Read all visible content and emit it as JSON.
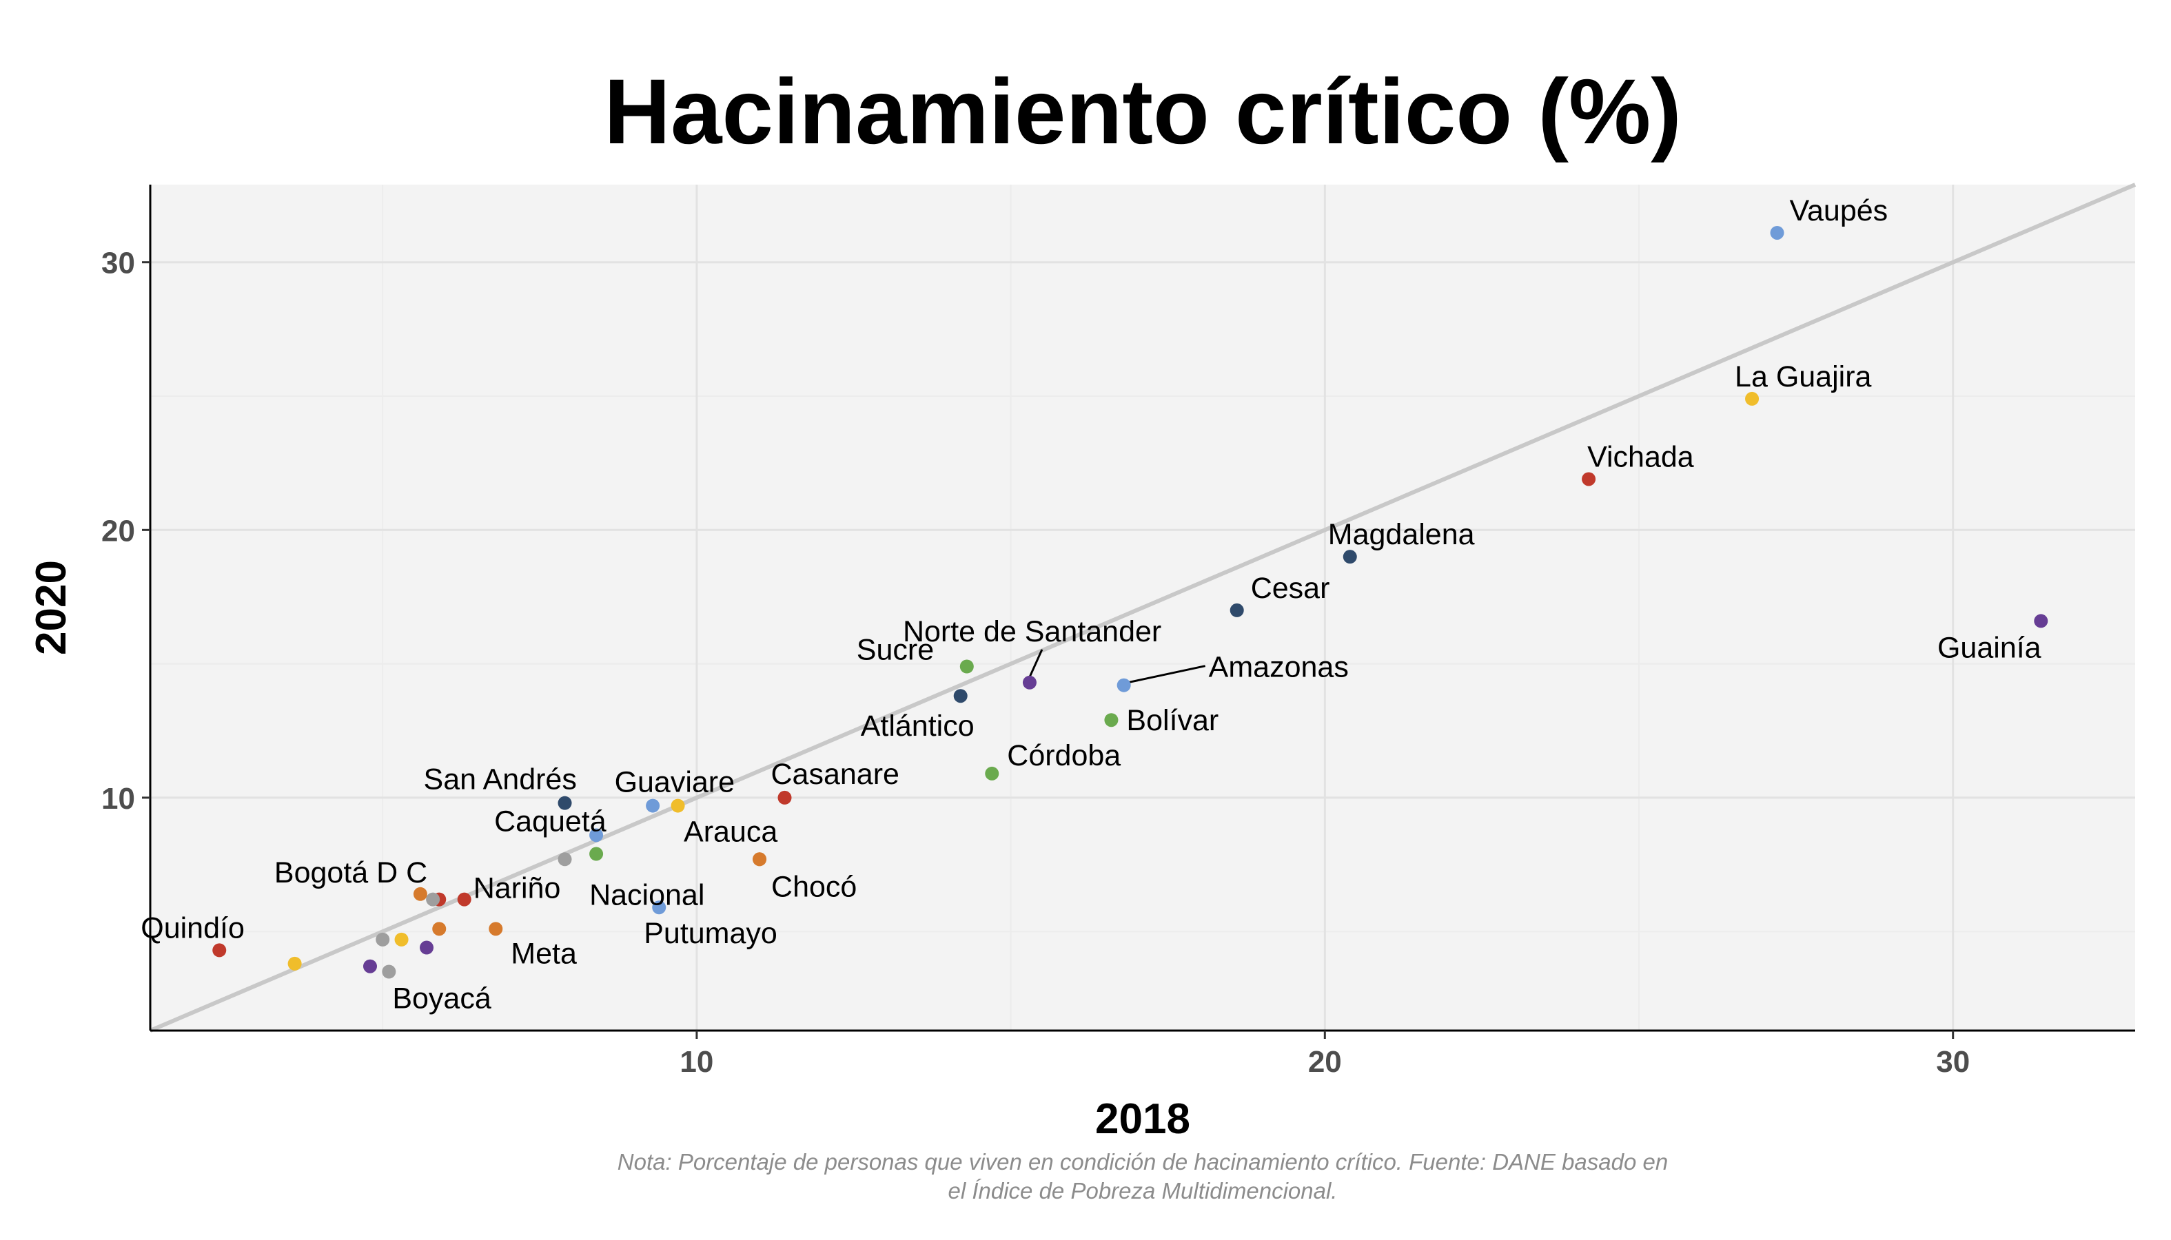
{
  "chart_data": {
    "type": "scatter",
    "title": "Hacinamiento crítico (%)",
    "xlabel": "2018",
    "ylabel": "2020",
    "xlim": [
      1.3,
      32.9
    ],
    "ylim": [
      1.3,
      32.9
    ],
    "xticks": [
      10,
      20,
      30
    ],
    "yticks": [
      10,
      20,
      30
    ],
    "grid": true,
    "reference_line": "y = x",
    "colors": {
      "red": "#c0392b",
      "orange": "#d67a2c",
      "yellow": "#f0bd2b",
      "green": "#6aaa4e",
      "lightblue": "#6f9bd8",
      "navy": "#2f4a6b",
      "purple": "#663d94",
      "gray": "#9e9e9e"
    },
    "points": [
      {
        "label": "Vaupés",
        "x": 27.2,
        "y": 31.1,
        "color": "lightblue"
      },
      {
        "label": "La Guajira",
        "x": 26.8,
        "y": 24.9,
        "color": "yellow"
      },
      {
        "label": "Vichada",
        "x": 24.2,
        "y": 21.9,
        "color": "red"
      },
      {
        "label": "Magdalena",
        "x": 20.4,
        "y": 19.0,
        "color": "navy"
      },
      {
        "label": "Cesar",
        "x": 18.6,
        "y": 17.0,
        "color": "navy"
      },
      {
        "label": "Guainía",
        "x": 31.4,
        "y": 16.6,
        "color": "purple"
      },
      {
        "label": "Norte de Santander",
        "x": 15.3,
        "y": 14.3,
        "color": "purple"
      },
      {
        "label": "Amazonas",
        "x": 16.8,
        "y": 14.2,
        "color": "lightblue"
      },
      {
        "label": "Sucre",
        "x": 14.3,
        "y": 14.9,
        "color": "green"
      },
      {
        "label": "Atlántico",
        "x": 14.2,
        "y": 13.8,
        "color": "navy"
      },
      {
        "label": "Bolívar",
        "x": 16.6,
        "y": 12.9,
        "color": "green"
      },
      {
        "label": "Córdoba",
        "x": 14.7,
        "y": 10.9,
        "color": "green"
      },
      {
        "label": "Casanare",
        "x": 11.4,
        "y": 10.0,
        "color": "red"
      },
      {
        "label": "San Andrés",
        "x": 7.9,
        "y": 9.8,
        "color": "navy"
      },
      {
        "label": "Guaviare",
        "x": 9.7,
        "y": 9.7,
        "color": "yellow"
      },
      {
        "label": "",
        "x": 9.3,
        "y": 9.7,
        "color": "lightblue"
      },
      {
        "label": "Caquetá",
        "x": 8.4,
        "y": 8.6,
        "color": "lightblue"
      },
      {
        "label": "Nacional",
        "x": 8.4,
        "y": 7.9,
        "color": "green"
      },
      {
        "label": "",
        "x": 7.9,
        "y": 7.7,
        "color": "gray"
      },
      {
        "label": "Arauca",
        "x": 11.0,
        "y": 7.7,
        "color": "orange"
      },
      {
        "label": "Chocó",
        "x": 11.0,
        "y": 7.7,
        "color": "orange"
      },
      {
        "label": "Putumayo",
        "x": 9.4,
        "y": 5.9,
        "color": "lightblue"
      },
      {
        "label": "Bogotá D C",
        "x": 5.6,
        "y": 6.4,
        "color": "orange"
      },
      {
        "label": "",
        "x": 5.9,
        "y": 6.2,
        "color": "red"
      },
      {
        "label": "",
        "x": 5.8,
        "y": 6.2,
        "color": "gray"
      },
      {
        "label": "Nariño",
        "x": 6.3,
        "y": 6.2,
        "color": "red"
      },
      {
        "label": "Meta",
        "x": 6.8,
        "y": 5.1,
        "color": "orange"
      },
      {
        "label": "",
        "x": 5.9,
        "y": 5.1,
        "color": "orange"
      },
      {
        "label": "",
        "x": 5.0,
        "y": 4.7,
        "color": "gray"
      },
      {
        "label": "",
        "x": 5.3,
        "y": 4.7,
        "color": "yellow"
      },
      {
        "label": "",
        "x": 5.7,
        "y": 4.4,
        "color": "purple"
      },
      {
        "label": "Quindío",
        "x": 2.4,
        "y": 4.3,
        "color": "red"
      },
      {
        "label": "",
        "x": 3.6,
        "y": 3.8,
        "color": "yellow"
      },
      {
        "label": "",
        "x": 4.8,
        "y": 3.7,
        "color": "purple"
      },
      {
        "label": "Boyacá",
        "x": 5.1,
        "y": 3.5,
        "color": "gray"
      }
    ]
  },
  "note": {
    "line1": "Nota: Porcentaje de personas que viven en condición de hacinamiento crítico. Fuente: DANE basado en",
    "line2": "el Índice de Pobreza Multidimencional."
  }
}
